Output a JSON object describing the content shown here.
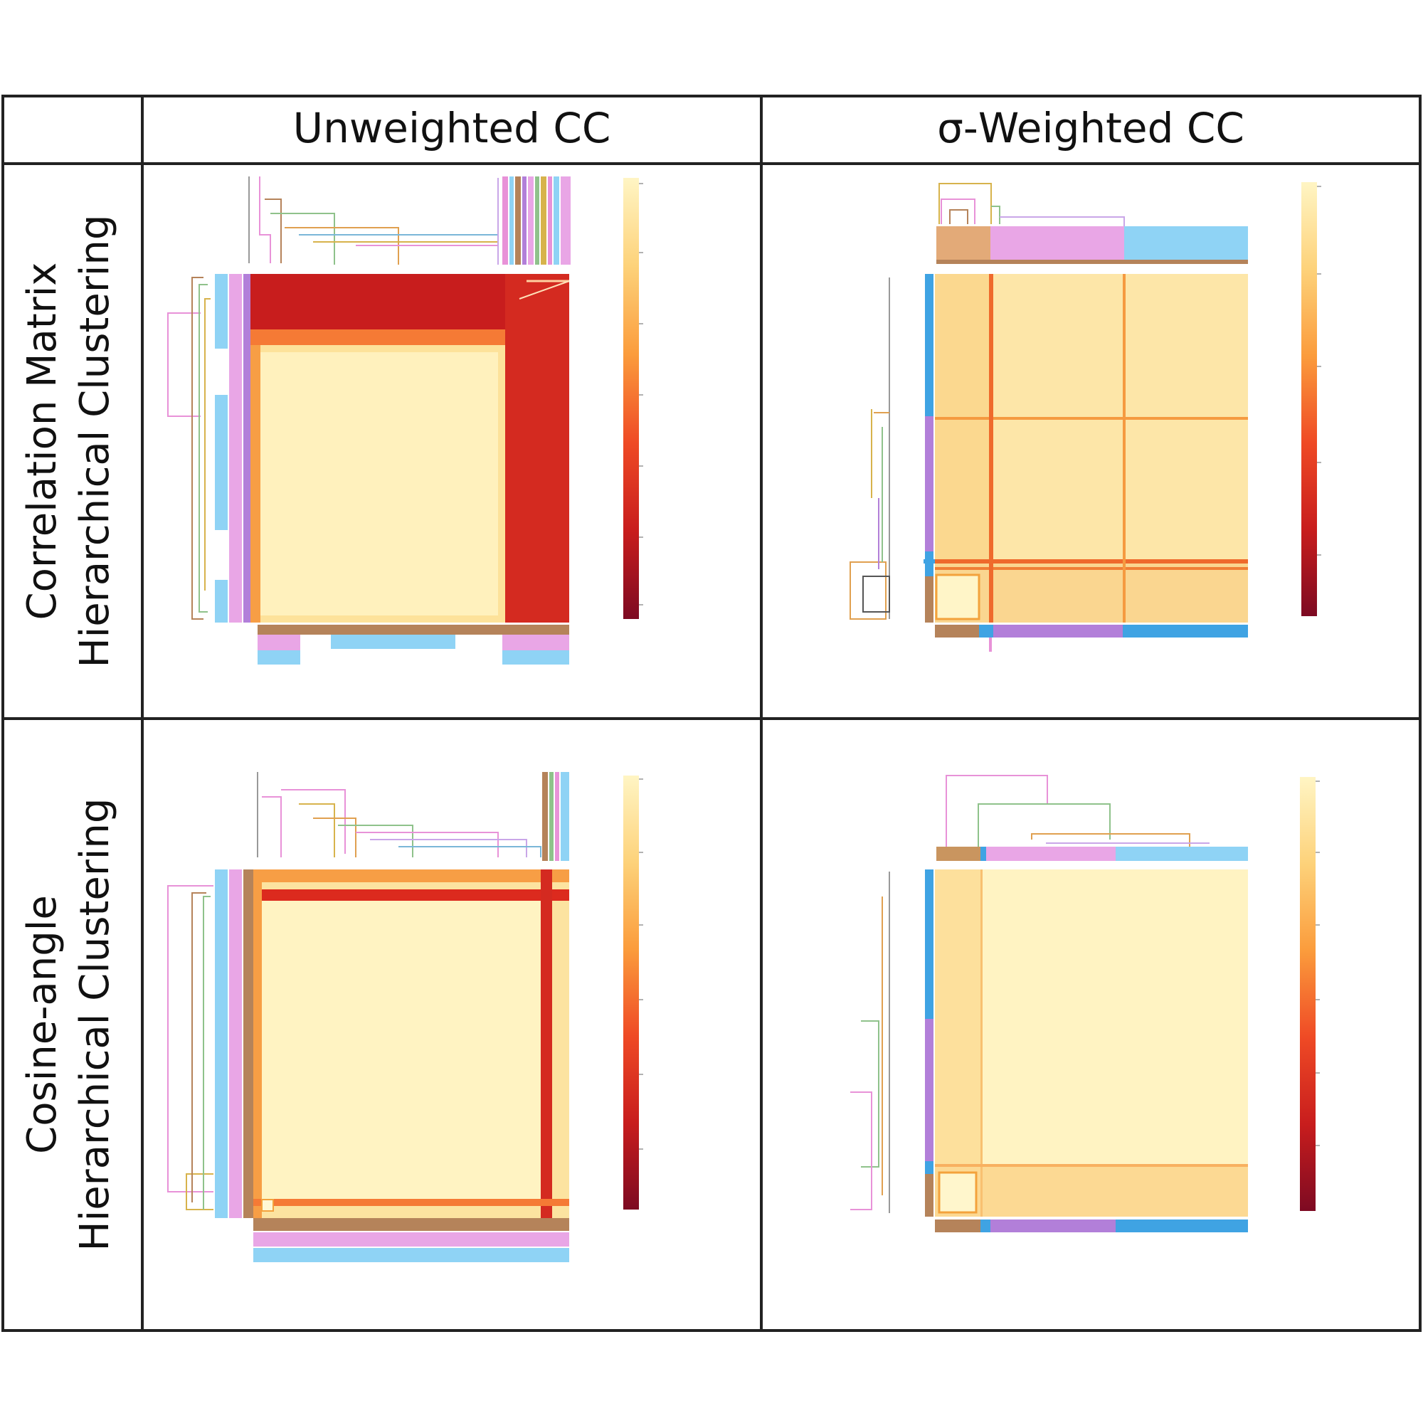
{
  "figure": {
    "columns": [
      "Unweighted CC",
      "σ-Weighted CC"
    ],
    "rows": [
      {
        "line1": "Correlation Matrix",
        "line2": "Hierarchical Clustering"
      },
      {
        "line1": "Cosine-angle",
        "line2": "Hierarchical Clustering"
      }
    ]
  },
  "colors": {
    "cluster_brown": "#b5835a",
    "cluster_pink": "#e9a6e6",
    "cluster_lightblue": "#8fd3f5",
    "cluster_blue": "#3fa3e3",
    "cluster_purple": "#b27fd9",
    "colormap": [
      "#7d0a22",
      "#c81d1d",
      "#ef4a25",
      "#fb9c3c",
      "#fdd27a",
      "#fff5c4"
    ]
  },
  "chart_data": [
    {
      "type": "heatmap",
      "panel": "Correlation Matrix / Unweighted CC",
      "title": "",
      "description": "Clustered correlation-coefficient matrix with dendrograms and cluster color bars",
      "colorbar": {
        "colormap": "YlOrRd (reversed)",
        "range": [
          0,
          1
        ]
      },
      "blocks": [
        {
          "name": "low-correlation block",
          "rows": [
            0.0,
            0.2
          ],
          "cols": [
            0.0,
            1.0
          ],
          "value": 0.25
        },
        {
          "name": "low-correlation block",
          "rows": [
            0.0,
            1.0
          ],
          "cols": [
            0.8,
            1.0
          ],
          "value": 0.25
        },
        {
          "name": "high-correlation block",
          "rows": [
            0.22,
            1.0
          ],
          "cols": [
            0.0,
            0.78
          ],
          "value": 0.95
        }
      ],
      "cluster_bars": [
        "cluster_brown",
        "cluster_pink",
        "cluster_lightblue"
      ]
    },
    {
      "type": "heatmap",
      "panel": "Correlation Matrix / σ-Weighted CC",
      "title": "",
      "description": "Mostly high correlation with a low-correlation stripe near a small cluster",
      "colorbar": {
        "colormap": "YlOrRd (reversed)",
        "range": [
          0,
          1
        ]
      },
      "blocks": [
        {
          "name": "high-correlation background",
          "rows": [
            0.0,
            1.0
          ],
          "cols": [
            0.0,
            1.0
          ],
          "value": 0.9
        },
        {
          "name": "low stripe",
          "rows": [
            0.83,
            0.86
          ],
          "cols": [
            0.0,
            1.0
          ],
          "value": 0.55
        },
        {
          "name": "low stripe",
          "rows": [
            0.0,
            1.0
          ],
          "cols": [
            0.15,
            0.18
          ],
          "value": 0.55
        }
      ],
      "cluster_bars": [
        "cluster_brown",
        "cluster_purple",
        "cluster_blue"
      ]
    },
    {
      "type": "heatmap",
      "panel": "Cosine-angle / Unweighted CC",
      "title": "",
      "description": "High-similarity block with low-similarity stripes at top and right",
      "colorbar": {
        "colormap": "YlOrRd (reversed)",
        "range": [
          0,
          1
        ]
      },
      "blocks": [
        {
          "name": "high-similarity background",
          "rows": [
            0.0,
            1.0
          ],
          "cols": [
            0.0,
            1.0
          ],
          "value": 0.93
        },
        {
          "name": "low stripe",
          "rows": [
            0.05,
            0.09
          ],
          "cols": [
            0.0,
            1.0
          ],
          "value": 0.35
        },
        {
          "name": "low stripe",
          "rows": [
            0.0,
            1.0
          ],
          "cols": [
            0.9,
            0.94
          ],
          "value": 0.35
        }
      ],
      "cluster_bars": [
        "cluster_brown",
        "cluster_pink",
        "cluster_lightblue"
      ]
    },
    {
      "type": "heatmap",
      "panel": "Cosine-angle / σ-Weighted CC",
      "title": "",
      "description": "Nearly uniform high similarity with a slightly lower band near the bottom cluster",
      "colorbar": {
        "colormap": "YlOrRd (reversed)",
        "range": [
          0,
          1
        ]
      },
      "blocks": [
        {
          "name": "high-similarity background",
          "rows": [
            0.0,
            1.0
          ],
          "cols": [
            0.0,
            1.0
          ],
          "value": 0.95
        },
        {
          "name": "lower band",
          "rows": [
            0.85,
            1.0
          ],
          "cols": [
            0.0,
            1.0
          ],
          "value": 0.8
        },
        {
          "name": "lower band",
          "rows": [
            0.0,
            1.0
          ],
          "cols": [
            0.0,
            0.15
          ],
          "value": 0.85
        }
      ],
      "cluster_bars": [
        "cluster_brown",
        "cluster_purple",
        "cluster_blue"
      ]
    }
  ]
}
